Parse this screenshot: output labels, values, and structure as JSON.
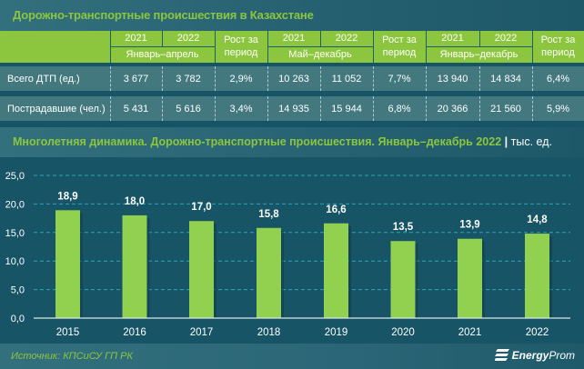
{
  "title": "Дорожно-транспортные происшествия в Казахстане",
  "table": {
    "groups": [
      {
        "years": [
          "2021",
          "2022"
        ],
        "period": "Январь–апрель",
        "growth_label": "Рост за период"
      },
      {
        "years": [
          "2021",
          "2022"
        ],
        "period": "Май–декабрь",
        "growth_label": "Рост за период"
      },
      {
        "years": [
          "2021",
          "2022"
        ],
        "period": "Январь–декабрь",
        "growth_label": "Рост за период"
      }
    ],
    "growth_line1": "Рост за",
    "growth_line2": "период",
    "rows": [
      {
        "label": "Всего ДТП (ед.)",
        "values": [
          "3 677",
          "3 782",
          "2,9%",
          "10 263",
          "11 052",
          "7,7%",
          "13 940",
          "14 834",
          "6,4%"
        ]
      },
      {
        "label": "Пострадавшие (чел.)",
        "values": [
          "5 431",
          "5 616",
          "3,4%",
          "14 935",
          "15 944",
          "6,8%",
          "20 366",
          "21 560",
          "5,9%"
        ]
      }
    ]
  },
  "chart_title": {
    "text": "Многолетняя динамика. Дорожно-транспортные происшествия. Январь–декабрь 2022",
    "separator": "|",
    "unit": "тыс. ед."
  },
  "chart_data": {
    "type": "bar",
    "title": "Многолетняя динамика. Дорожно-транспортные происшествия. Январь–декабрь 2022",
    "ylabel": "тыс. ед.",
    "xlabel": "",
    "categories": [
      "2015",
      "2016",
      "2017",
      "2018",
      "2019",
      "2020",
      "2021",
      "2022"
    ],
    "values": [
      18.9,
      18.0,
      17.0,
      15.8,
      16.6,
      13.5,
      13.9,
      14.8
    ],
    "value_labels": [
      "18,9",
      "18,0",
      "17,0",
      "15,8",
      "16,6",
      "13,5",
      "13,9",
      "14,8"
    ],
    "ylim": [
      0,
      25
    ],
    "yticks": [
      0,
      5,
      10,
      15,
      20,
      25
    ],
    "ytick_labels": [
      "0,0",
      "5,0",
      "10,0",
      "15,0",
      "20,0",
      "25,0"
    ],
    "grid": true,
    "legend": "none",
    "colors": {
      "bar": "#92d050",
      "grid": "#2aa3bf",
      "axis": "#d9e6ea",
      "text": "#ffffff"
    }
  },
  "footer": {
    "source": "Источник: КПСиСУ ГП РК",
    "logo_bold": "Energy",
    "logo_light": "Prom"
  }
}
